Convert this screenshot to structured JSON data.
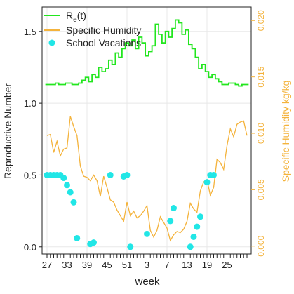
{
  "chart_data": {
    "type": "line",
    "xlabel": "week",
    "ylabel_left": "Reproductive Number",
    "ylabel_right": "Specific Humidity kg/kg",
    "x_ticks": [
      "27",
      "33",
      "39",
      "45",
      "51",
      "3",
      "7",
      "13",
      "19",
      "25"
    ],
    "y_left_ticks": [
      "0.0",
      "0.5",
      "1.0",
      "1.5"
    ],
    "y_right_ticks": [
      "0.000",
      "0.005",
      "0.010",
      "0.015",
      "0.020"
    ],
    "ylim_left": [
      -0.05,
      1.67
    ],
    "ylim_right": [
      -0.0007,
      0.0212
    ],
    "grid": true,
    "legend_position": "top-left",
    "legend": {
      "r": "R",
      "r_sub": "e",
      "r_suffix": "(t)",
      "humidity": "Specific Humidity",
      "vacations": "School Vacations"
    },
    "colors": {
      "r": "#22e61e",
      "humidity": "#f4b33c",
      "vacations": "#21e6e6",
      "right_axis": "#f4b33c",
      "grid": "#e8e8e8"
    },
    "series": [
      {
        "name": "Re(t)",
        "values": [
          1.13,
          1.13,
          1.13,
          1.14,
          1.13,
          1.13,
          1.14,
          1.14,
          1.13,
          1.13,
          1.14,
          1.16,
          1.18,
          1.15,
          1.2,
          1.18,
          1.25,
          1.22,
          1.24,
          1.3,
          1.27,
          1.35,
          1.32,
          1.38,
          1.42,
          1.4,
          1.44,
          1.38,
          1.46,
          1.42,
          1.33,
          1.36,
          1.4,
          1.55,
          1.48,
          1.42,
          1.5,
          1.46,
          1.52,
          1.58,
          1.56,
          1.48,
          1.51,
          1.41,
          1.38,
          1.32,
          1.24,
          1.27,
          1.22,
          1.18,
          1.2,
          1.17,
          1.15,
          1.13,
          1.13,
          1.14,
          1.14,
          1.13,
          1.12,
          1.13,
          1.13
        ]
      },
      {
        "name": "Specific Humidity",
        "values": [
          0.0098,
          0.0099,
          0.0083,
          0.0093,
          0.008,
          0.0086,
          0.0087,
          0.0115,
          0.0106,
          0.0098,
          0.0071,
          0.0062,
          0.0061,
          0.0058,
          0.0063,
          0.0058,
          0.0044,
          0.0062,
          0.0052,
          0.0041,
          0.0039,
          0.0032,
          0.0027,
          0.0022,
          0.0039,
          0.0027,
          0.0031,
          0.0025,
          0.0027,
          0.0031,
          0.0036,
          0.0014,
          0.0008,
          0.0014,
          0.0026,
          0.0021,
          0.0016,
          0.0005,
          0.001,
          0.0013,
          0.0012,
          0.0015,
          0.0022,
          0.0038,
          0.0033,
          0.003,
          0.0049,
          0.0057,
          0.0059,
          0.0045,
          0.0052,
          0.0077,
          0.0074,
          0.0068,
          0.0089,
          0.0104,
          0.0097,
          0.0108,
          0.011,
          0.0111,
          0.0098
        ]
      },
      {
        "name": "School Vacations",
        "points": [
          [
            0,
            0.5
          ],
          [
            1,
            0.5
          ],
          [
            2,
            0.5
          ],
          [
            3,
            0.5
          ],
          [
            4,
            0.5
          ],
          [
            5,
            0.48
          ],
          [
            6,
            0.43
          ],
          [
            7,
            0.38
          ],
          [
            8,
            0.31
          ],
          [
            9,
            0.06
          ],
          [
            13,
            0.02
          ],
          [
            14,
            0.03
          ],
          [
            19,
            0.5
          ],
          [
            23,
            0.49
          ],
          [
            24,
            0.5
          ],
          [
            25,
            0.0
          ],
          [
            30,
            0.09
          ],
          [
            37,
            0.18
          ],
          [
            38,
            0.27
          ],
          [
            43,
            0.0
          ],
          [
            44,
            0.07
          ],
          [
            45,
            0.14
          ],
          [
            46,
            0.21
          ],
          [
            48,
            0.45
          ],
          [
            49,
            0.5
          ],
          [
            50,
            0.5
          ]
        ]
      }
    ]
  }
}
